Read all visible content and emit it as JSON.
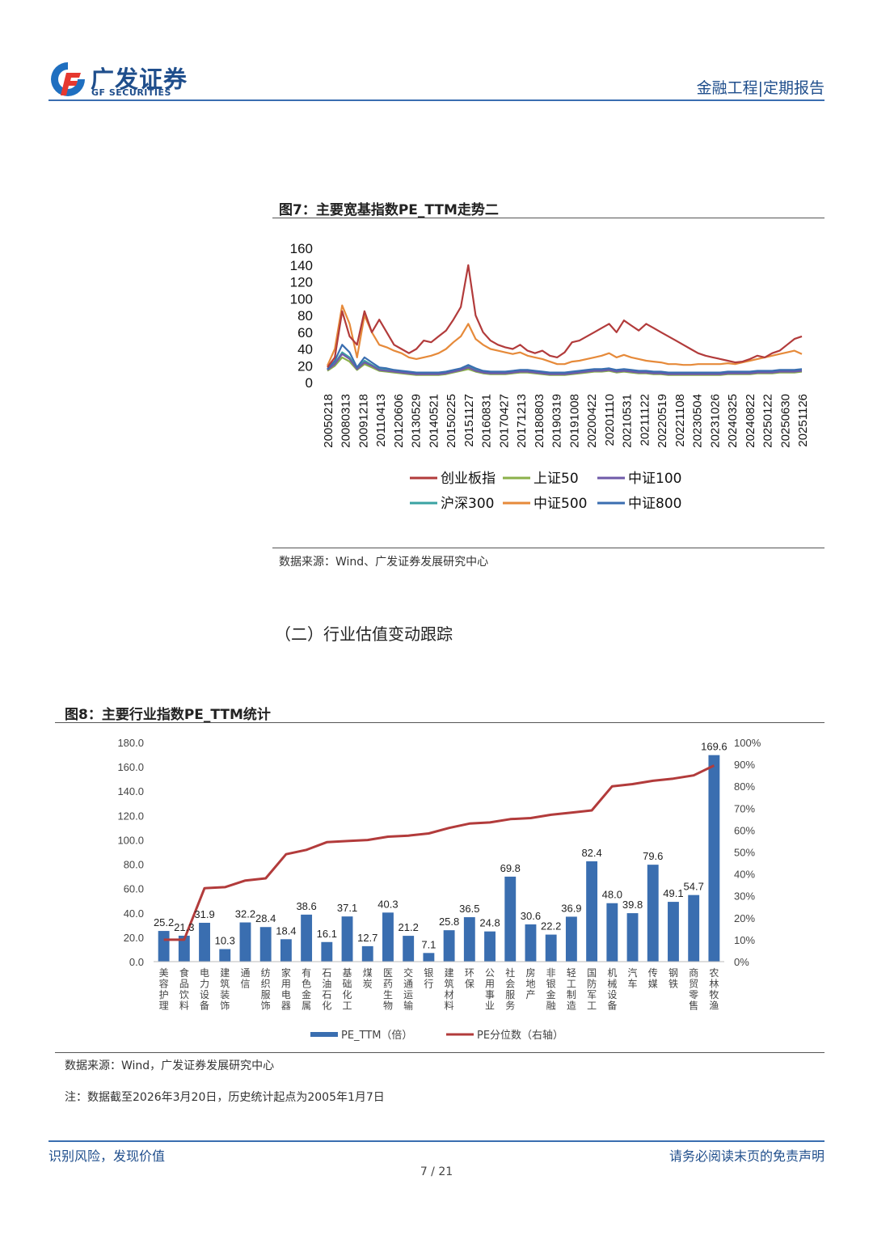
{
  "header": {
    "brand_cn": "广发证券",
    "brand_en": "GF SECURITIES",
    "right_text": "金融工程|定期报告",
    "logo_icon": "gf-logo-icon"
  },
  "figure7": {
    "title": "图7：主要宽基指数PE_TTM走势二",
    "source": "数据来源：Wind、广发证券发展研究中心",
    "chart_data": {
      "type": "line",
      "y_ticks": [
        "0",
        "20",
        "40",
        "60",
        "80",
        "100",
        "120",
        "140",
        "160"
      ],
      "ylim": [
        0,
        160
      ],
      "x_ticks": [
        "20050218",
        "20080313",
        "20091218",
        "20110413",
        "20120606",
        "20130529",
        "20140521",
        "20150225",
        "20151127",
        "20160831",
        "20170427",
        "20171213",
        "20180803",
        "20190319",
        "20191008",
        "20200422",
        "20201110",
        "20210531",
        "20211122",
        "20220519",
        "20221108",
        "20230504",
        "20231026",
        "20240325",
        "20240822",
        "20250122",
        "20250630",
        "20251126"
      ],
      "legend_position": "bottom",
      "series": [
        {
          "name": "创业板指",
          "color": "#b23b3b",
          "values": [
            18,
            30,
            85,
            55,
            45,
            85,
            60,
            75,
            60,
            45,
            40,
            35,
            40,
            50,
            48,
            55,
            62,
            75,
            90,
            140,
            80,
            60,
            50,
            45,
            42,
            40,
            45,
            38,
            35,
            38,
            32,
            30,
            36,
            48,
            50,
            55,
            60,
            65,
            70,
            60,
            74,
            68,
            62,
            70,
            65,
            60,
            55,
            50,
            45,
            40,
            35,
            32,
            30,
            28,
            26,
            24,
            25,
            28,
            32,
            30,
            35,
            38,
            45,
            52,
            55
          ]
        },
        {
          "name": "上证50",
          "color": "#8bb04a",
          "values": [
            14,
            20,
            30,
            25,
            15,
            22,
            18,
            14,
            13,
            12,
            11,
            10,
            9,
            9,
            9,
            9,
            10,
            12,
            14,
            16,
            13,
            11,
            10,
            10,
            10,
            11,
            12,
            12,
            11,
            10,
            9,
            9,
            9,
            10,
            11,
            12,
            13,
            13,
            14,
            12,
            13,
            12,
            11,
            11,
            10,
            10,
            9,
            9,
            9,
            9,
            9,
            9,
            9,
            9,
            10,
            10,
            10,
            10,
            11,
            11,
            11,
            12,
            12,
            12,
            13
          ]
        },
        {
          "name": "中证100",
          "color": "#6f5aa8",
          "values": [
            15,
            22,
            34,
            28,
            16,
            24,
            20,
            15,
            14,
            13,
            12,
            11,
            10,
            10,
            10,
            10,
            11,
            13,
            15,
            18,
            14,
            12,
            11,
            11,
            11,
            12,
            13,
            13,
            12,
            11,
            10,
            10,
            10,
            11,
            12,
            13,
            14,
            14,
            15,
            13,
            14,
            13,
            12,
            12,
            11,
            11,
            10,
            10,
            10,
            10,
            10,
            10,
            10,
            10,
            11,
            11,
            11,
            11,
            12,
            12,
            12,
            13,
            13,
            13,
            14
          ]
        },
        {
          "name": "沪深300",
          "color": "#3aa3a3",
          "values": [
            15,
            23,
            36,
            30,
            17,
            26,
            21,
            16,
            15,
            14,
            13,
            12,
            11,
            11,
            11,
            11,
            12,
            14,
            16,
            19,
            15,
            13,
            12,
            12,
            12,
            13,
            14,
            14,
            13,
            12,
            11,
            11,
            11,
            12,
            13,
            14,
            15,
            15,
            16,
            14,
            15,
            14,
            13,
            13,
            12,
            12,
            11,
            11,
            11,
            11,
            11,
            11,
            11,
            11,
            12,
            12,
            12,
            12,
            13,
            13,
            13,
            14,
            14,
            14,
            15
          ]
        },
        {
          "name": "中证500",
          "color": "#e68a3a",
          "values": [
            20,
            40,
            92,
            70,
            30,
            80,
            60,
            45,
            42,
            38,
            35,
            30,
            28,
            30,
            32,
            35,
            40,
            48,
            55,
            70,
            52,
            45,
            40,
            38,
            36,
            34,
            36,
            32,
            30,
            28,
            25,
            22,
            22,
            25,
            26,
            28,
            30,
            32,
            35,
            30,
            33,
            30,
            28,
            26,
            25,
            24,
            22,
            22,
            21,
            21,
            22,
            22,
            22,
            22,
            23,
            22,
            24,
            26,
            28,
            30,
            32,
            34,
            36,
            38,
            34
          ]
        },
        {
          "name": "中证800",
          "color": "#3a6eb0",
          "values": [
            16,
            26,
            45,
            36,
            18,
            30,
            24,
            18,
            17,
            15,
            14,
            13,
            12,
            12,
            12,
            12,
            13,
            15,
            17,
            21,
            17,
            14,
            13,
            13,
            13,
            14,
            15,
            15,
            14,
            13,
            12,
            12,
            12,
            13,
            14,
            15,
            16,
            16,
            17,
            15,
            16,
            15,
            14,
            14,
            13,
            13,
            12,
            12,
            12,
            12,
            12,
            12,
            12,
            12,
            13,
            13,
            13,
            13,
            14,
            14,
            14,
            15,
            15,
            15,
            16
          ]
        }
      ]
    }
  },
  "section": {
    "heading": "（二）行业估值变动跟踪"
  },
  "figure8": {
    "title": "图8：主要行业指数PE_TTM统计",
    "source": "数据来源：Wind，广发证券发展研究中心",
    "note": "注：数据截至2026年3月20日，历史统计起点为2005年1月7日",
    "chart_data": {
      "type": "bar",
      "categories": [
        "美容护理",
        "食品饮料",
        "电力设备",
        "建筑装饰",
        "通信",
        "纺织服饰",
        "家用电器",
        "有色金属",
        "石油石化",
        "基础化工",
        "煤炭",
        "医药生物",
        "交通运输",
        "银行",
        "建筑材料",
        "环保",
        "公用事业",
        "社会服务",
        "房地产",
        "非银金融",
        "轻工制造",
        "国防军工",
        "机械设备",
        "汽车",
        "传媒",
        "钢铁",
        "商贸零售",
        "农林牧渔"
      ],
      "series": [
        {
          "name": "PE_TTM（倍）",
          "color": "#3a6eb0",
          "axis": "left",
          "values": [
            25.2,
            21.3,
            31.9,
            10.3,
            32.2,
            28.4,
            18.4,
            38.6,
            16.1,
            37.1,
            12.7,
            40.3,
            21.2,
            7.1,
            25.8,
            36.5,
            24.8,
            69.8,
            30.6,
            22.2,
            36.9,
            82.4,
            48.0,
            39.8,
            79.6,
            49.1,
            54.7,
            169.6
          ],
          "labels": [
            "25.2",
            "21.3",
            "31.9",
            "10.3",
            "32.2",
            "28.4",
            "18.4",
            "38.6",
            "16.1",
            "37.1",
            "12.7",
            "40.3",
            "21.2",
            "7.1",
            "25.8",
            "36.5",
            "24.8",
            "69.8",
            "30.6",
            "22.2",
            "36.9",
            "82.4",
            "48.0",
            "39.8",
            "79.6",
            "49.1",
            "54.7",
            "169.6"
          ]
        },
        {
          "name": "PE分位数（右轴）",
          "color": "#b23b3b",
          "axis": "right",
          "values": [
            0.1,
            0.1,
            0.335,
            0.34,
            0.37,
            0.38,
            0.49,
            0.51,
            0.545,
            0.55,
            0.555,
            0.57,
            0.575,
            0.585,
            0.61,
            0.63,
            0.635,
            0.65,
            0.655,
            0.67,
            0.68,
            0.69,
            0.8,
            0.81,
            0.825,
            0.835,
            0.85,
            0.895
          ]
        }
      ],
      "y_left_ticks": [
        "0.0",
        "20.0",
        "40.0",
        "60.0",
        "80.0",
        "100.0",
        "120.0",
        "140.0",
        "160.0",
        "180.0"
      ],
      "y_left_lim": [
        0,
        180
      ],
      "y_right_ticks": [
        "0%",
        "10%",
        "20%",
        "30%",
        "40%",
        "50%",
        "60%",
        "70%",
        "80%",
        "90%",
        "100%"
      ],
      "y_right_lim": [
        0,
        1
      ],
      "legend_position": "bottom"
    }
  },
  "footer": {
    "left": "识别风险，发现价值",
    "right": "请务必阅读末页的免责声明",
    "page": "7 / 21"
  }
}
